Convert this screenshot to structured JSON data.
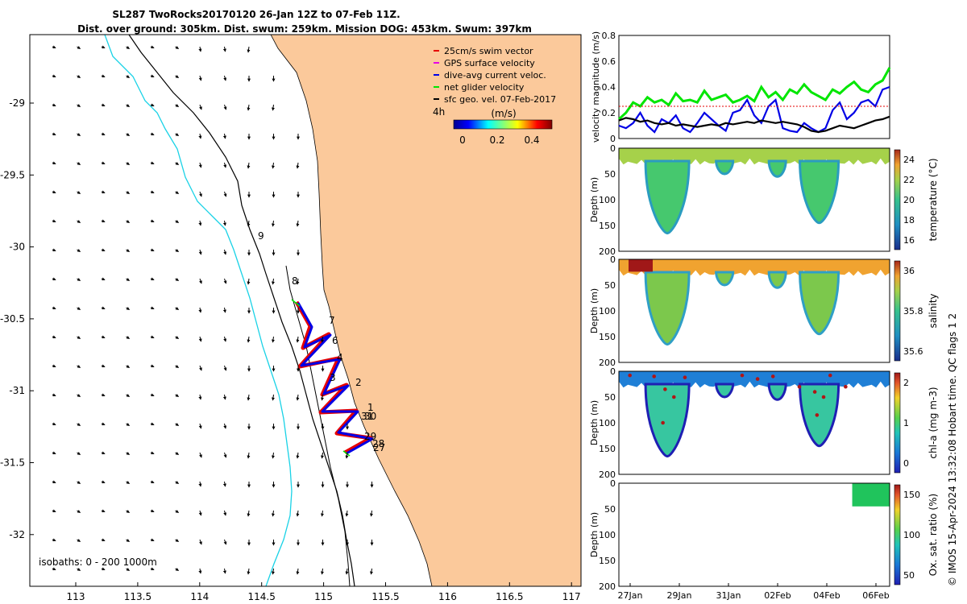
{
  "header": {
    "title_line1": "SL287 TwoRocks20170120 26-Jan 12Z to 07-Feb 11Z.",
    "title_line2": "Dist. over ground: 305km. Dist. swum: 259km. Mission DOG: 453km. Swum: 397km"
  },
  "map": {
    "legend": [
      {
        "label": "25cm/s swim vector",
        "color": "#e60000"
      },
      {
        "label": "GPS surface velocity",
        "color": "#e600e6"
      },
      {
        "label": "dive-avg current veloc.",
        "color": "#0000e6"
      },
      {
        "label": "net glider velocity",
        "color": "#00e600"
      },
      {
        "label": "sfc geo. vel. 07-Feb-2017",
        "color": "#000000"
      }
    ],
    "arrow_scale_label": "4h",
    "colorbar_unit": "(m/s)",
    "colorbar_ticks": [
      "0",
      "0.2",
      "0.4"
    ],
    "isobath_label": "isobaths: 0 - 200  1000m",
    "day_labels": [
      "9",
      "8",
      "7",
      "6",
      "4",
      "3",
      "2",
      "1",
      "31",
      "30",
      "29",
      "28",
      "27"
    ],
    "colors": {
      "land": "#fbc99b",
      "coast_200": "#000000",
      "coast_1000": "#19d2e6"
    }
  },
  "chart_data": [
    {
      "type": "line",
      "name": "velocity-panel",
      "ylabel": "velocity magnitude (m/s)",
      "ylim": [
        0,
        0.8
      ],
      "yticks": [
        "0",
        "0.2",
        "0.4",
        "0.6",
        "0.8"
      ],
      "x_range_days": [
        0,
        12
      ],
      "series": [
        {
          "name": "net glider velocity",
          "color": "#00e600",
          "values": [
            0.15,
            0.2,
            0.28,
            0.25,
            0.32,
            0.28,
            0.3,
            0.26,
            0.35,
            0.29,
            0.3,
            0.28,
            0.37,
            0.3,
            0.32,
            0.34,
            0.28,
            0.3,
            0.33,
            0.29,
            0.4,
            0.32,
            0.36,
            0.3,
            0.38,
            0.35,
            0.42,
            0.36,
            0.33,
            0.3,
            0.38,
            0.35,
            0.4,
            0.44,
            0.38,
            0.36,
            0.42,
            0.45,
            0.55
          ]
        },
        {
          "name": "dive-avg current veloc.",
          "color": "#0000e6",
          "values": [
            0.1,
            0.08,
            0.12,
            0.2,
            0.1,
            0.05,
            0.15,
            0.12,
            0.18,
            0.08,
            0.05,
            0.12,
            0.2,
            0.15,
            0.1,
            0.06,
            0.2,
            0.22,
            0.3,
            0.18,
            0.12,
            0.25,
            0.3,
            0.08,
            0.06,
            0.05,
            0.12,
            0.08,
            0.05,
            0.08,
            0.22,
            0.28,
            0.15,
            0.2,
            0.28,
            0.3,
            0.25,
            0.38,
            0.4
          ]
        },
        {
          "name": "sfc geo. vel.",
          "color": "#000000",
          "values": [
            0.14,
            0.16,
            0.15,
            0.13,
            0.14,
            0.12,
            0.11,
            0.12,
            0.1,
            0.11,
            0.1,
            0.09,
            0.1,
            0.11,
            0.1,
            0.12,
            0.11,
            0.12,
            0.13,
            0.12,
            0.14,
            0.13,
            0.12,
            0.13,
            0.12,
            0.11,
            0.09,
            0.06,
            0.05,
            0.06,
            0.08,
            0.1,
            0.09,
            0.08,
            0.1,
            0.12,
            0.14,
            0.15,
            0.17
          ]
        },
        {
          "name": "25cm/s swim vector",
          "color": "#e60000",
          "values": [
            0.25,
            0.25,
            0.25,
            0.25,
            0.25,
            0.25,
            0.25,
            0.25,
            0.25,
            0.25,
            0.25,
            0.25,
            0.25,
            0.25,
            0.25,
            0.25,
            0.25,
            0.25,
            0.25,
            0.25,
            0.25,
            0.25,
            0.25,
            0.25,
            0.25,
            0.25,
            0.25,
            0.25,
            0.25,
            0.25,
            0.25,
            0.25,
            0.25,
            0.25,
            0.25,
            0.25,
            0.25,
            0.25,
            0.25
          ]
        }
      ]
    },
    {
      "type": "heatmap",
      "name": "temperature-panel",
      "ylabel": "Depth (m)",
      "ylim": [
        0,
        200
      ],
      "yticks": [
        "0",
        "50",
        "100",
        "150",
        "200"
      ],
      "colorbar_label": "temperature (°C)",
      "colorbar_ticks": [
        "24",
        "22",
        "20",
        "18",
        "16"
      ],
      "dive_troughs_days": [
        2.2,
        4.8,
        7.2,
        9.1
      ],
      "dive_depths_m": [
        165,
        50,
        55,
        145
      ]
    },
    {
      "type": "heatmap",
      "name": "salinity-panel",
      "ylabel": "Depth (m)",
      "ylim": [
        0,
        200
      ],
      "yticks": [
        "0",
        "50",
        "100",
        "150",
        "200"
      ],
      "colorbar_label": "salinity",
      "colorbar_ticks": [
        "36",
        "35.8",
        "35.6"
      ]
    },
    {
      "type": "heatmap",
      "name": "chla-panel",
      "ylabel": "Depth (m)",
      "ylim": [
        0,
        200
      ],
      "yticks": [
        "0",
        "50",
        "100",
        "150",
        "200"
      ],
      "colorbar_label": "chl-a (mg m-3)",
      "colorbar_ticks": [
        "2",
        "1",
        "0"
      ]
    },
    {
      "type": "heatmap",
      "name": "oxygen-panel",
      "ylabel": "Depth (m)",
      "ylim": [
        0,
        200
      ],
      "yticks": [
        "0",
        "50",
        "100",
        "150",
        "200"
      ],
      "colorbar_label": "Ox. sat. ratio (%)",
      "colorbar_ticks": [
        "150",
        "100",
        "50"
      ],
      "x_ticks": [
        "27Jan",
        "29Jan",
        "31Jan",
        "02Feb",
        "04Feb",
        "06Feb"
      ]
    }
  ],
  "map_axes": {
    "x_ticks": [
      "113",
      "113.5",
      "114",
      "114.5",
      "115",
      "115.5",
      "116",
      "116.5",
      "117"
    ],
    "y_ticks": [
      "-29",
      "-29.5",
      "-30",
      "-30.5",
      "-31",
      "-31.5",
      "-32"
    ]
  },
  "credit": "© IMOS 15-Apr-2024 13:32:08 Hobart time. QC flags 1  2"
}
